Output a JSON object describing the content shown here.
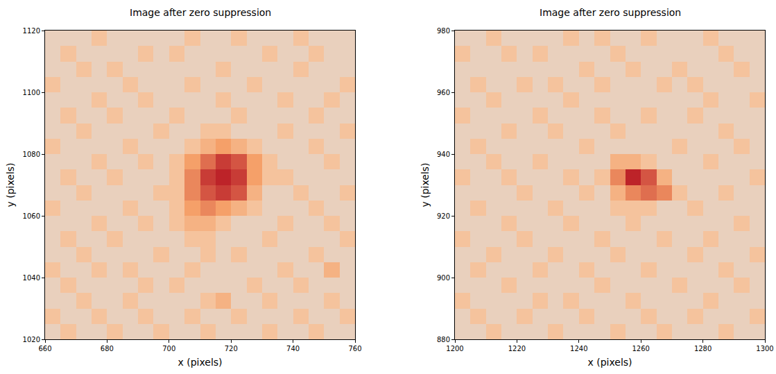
{
  "chart_data": [
    {
      "type": "heatmap",
      "title": "Image after zero suppression",
      "x_label": "x (pixels)",
      "y_label": "y (pixels)",
      "xlim": [
        660,
        760
      ],
      "ylim": [
        1020,
        1120
      ],
      "xticks": [
        660,
        680,
        700,
        720,
        740,
        760
      ],
      "yticks": [
        1020,
        1040,
        1060,
        1080,
        1100,
        1120
      ],
      "grid": false,
      "color": "Plasma",
      "zlim": [
        0,
        10
      ],
      "x": [
        662.5,
        667.5,
        672.5,
        677.5,
        682.5,
        687.5,
        692.5,
        697.5,
        702.5,
        707.5,
        712.5,
        717.5,
        722.5,
        727.5,
        732.5,
        737.5,
        742.5,
        747.5,
        752.5,
        757.5
      ],
      "y": [
        1022.5,
        1027.5,
        1032.5,
        1037.5,
        1042.5,
        1047.5,
        1052.5,
        1057.5,
        1062.5,
        1067.5,
        1072.5,
        1077.5,
        1082.5,
        1087.5,
        1092.5,
        1097.5,
        1102.5,
        1107.5,
        1112.5,
        1117.5
      ],
      "z": [
        [
          1,
          2,
          1,
          1,
          2,
          1,
          1,
          2,
          1,
          1,
          2,
          1,
          1,
          1,
          2,
          1,
          1,
          2,
          1,
          1
        ],
        [
          2,
          1,
          1,
          2,
          1,
          1,
          2,
          1,
          1,
          2,
          1,
          1,
          2,
          1,
          1,
          1,
          2,
          1,
          1,
          2
        ],
        [
          1,
          1,
          2,
          1,
          1,
          2,
          1,
          1,
          1,
          1,
          2,
          3,
          1,
          1,
          2,
          1,
          1,
          1,
          2,
          1
        ],
        [
          1,
          2,
          1,
          1,
          1,
          1,
          2,
          1,
          2,
          1,
          1,
          1,
          1,
          2,
          1,
          1,
          2,
          1,
          1,
          1
        ],
        [
          2,
          1,
          1,
          2,
          1,
          2,
          1,
          1,
          1,
          2,
          1,
          1,
          1,
          1,
          1,
          2,
          1,
          1,
          3,
          1
        ],
        [
          1,
          1,
          2,
          1,
          1,
          1,
          1,
          2,
          1,
          1,
          2,
          1,
          2,
          1,
          1,
          1,
          1,
          2,
          1,
          1
        ],
        [
          1,
          2,
          1,
          1,
          2,
          1,
          1,
          1,
          1,
          2,
          2,
          1,
          1,
          1,
          2,
          1,
          1,
          1,
          1,
          2
        ],
        [
          1,
          1,
          1,
          2,
          1,
          1,
          2,
          1,
          2,
          3,
          3,
          2,
          1,
          1,
          1,
          2,
          1,
          1,
          2,
          1
        ],
        [
          2,
          1,
          1,
          1,
          1,
          2,
          1,
          1,
          2,
          4,
          5,
          4,
          3,
          2,
          1,
          1,
          1,
          2,
          1,
          1
        ],
        [
          1,
          1,
          2,
          1,
          1,
          1,
          1,
          2,
          2,
          5,
          7,
          8,
          7,
          3,
          1,
          1,
          2,
          1,
          1,
          2
        ],
        [
          1,
          2,
          1,
          1,
          2,
          1,
          1,
          1,
          2,
          5,
          8,
          9,
          8,
          4,
          2,
          2,
          1,
          1,
          1,
          1
        ],
        [
          1,
          1,
          1,
          2,
          1,
          1,
          2,
          1,
          2,
          4,
          6,
          8,
          7,
          4,
          2,
          1,
          1,
          1,
          2,
          1
        ],
        [
          2,
          1,
          1,
          1,
          1,
          2,
          1,
          1,
          1,
          2,
          3,
          4,
          3,
          2,
          1,
          1,
          1,
          2,
          1,
          1
        ],
        [
          1,
          1,
          2,
          1,
          1,
          1,
          1,
          2,
          1,
          1,
          2,
          2,
          1,
          1,
          1,
          2,
          1,
          1,
          1,
          2
        ],
        [
          1,
          2,
          1,
          1,
          2,
          1,
          1,
          1,
          2,
          1,
          1,
          1,
          2,
          1,
          1,
          1,
          1,
          2,
          1,
          1
        ],
        [
          1,
          1,
          1,
          2,
          1,
          1,
          2,
          1,
          1,
          1,
          1,
          2,
          1,
          1,
          1,
          2,
          1,
          1,
          2,
          1
        ],
        [
          2,
          1,
          1,
          1,
          1,
          2,
          1,
          1,
          1,
          2,
          1,
          1,
          1,
          2,
          1,
          1,
          1,
          1,
          1,
          2
        ],
        [
          1,
          1,
          2,
          1,
          2,
          1,
          1,
          1,
          1,
          1,
          1,
          2,
          1,
          1,
          1,
          1,
          2,
          1,
          1,
          1
        ],
        [
          1,
          2,
          1,
          1,
          1,
          1,
          2,
          1,
          2,
          1,
          1,
          1,
          1,
          1,
          2,
          1,
          1,
          2,
          1,
          1
        ],
        [
          1,
          1,
          1,
          2,
          1,
          1,
          1,
          1,
          1,
          2,
          1,
          1,
          2,
          1,
          1,
          1,
          2,
          1,
          1,
          1
        ]
      ]
    },
    {
      "type": "heatmap",
      "title": "Image after zero suppression",
      "x_label": "x (pixels)",
      "y_label": "y (pixels)",
      "xlim": [
        1200,
        1300
      ],
      "ylim": [
        880,
        980
      ],
      "xticks": [
        1200,
        1220,
        1240,
        1260,
        1280,
        1300
      ],
      "yticks": [
        880,
        900,
        920,
        940,
        960,
        980
      ],
      "grid": false,
      "color": "Plasma",
      "zlim": [
        0,
        10
      ],
      "x": [
        1202.5,
        1207.5,
        1212.5,
        1217.5,
        1222.5,
        1227.5,
        1232.5,
        1237.5,
        1242.5,
        1247.5,
        1252.5,
        1257.5,
        1262.5,
        1267.5,
        1272.5,
        1277.5,
        1282.5,
        1287.5,
        1292.5,
        1297.5
      ],
      "y": [
        882.5,
        887.5,
        892.5,
        897.5,
        902.5,
        907.5,
        912.5,
        917.5,
        922.5,
        927.5,
        932.5,
        937.5,
        942.5,
        947.5,
        952.5,
        957.5,
        962.5,
        967.5,
        972.5,
        977.5
      ],
      "z": [
        [
          1,
          1,
          2,
          1,
          1,
          1,
          2,
          1,
          1,
          1,
          2,
          1,
          1,
          2,
          1,
          1,
          1,
          2,
          1,
          1
        ],
        [
          1,
          2,
          1,
          1,
          2,
          1,
          1,
          1,
          2,
          1,
          1,
          1,
          2,
          1,
          1,
          2,
          1,
          1,
          1,
          2
        ],
        [
          2,
          1,
          1,
          1,
          1,
          2,
          1,
          2,
          1,
          1,
          1,
          2,
          1,
          1,
          1,
          1,
          2,
          1,
          1,
          1
        ],
        [
          1,
          1,
          1,
          2,
          1,
          1,
          1,
          1,
          1,
          2,
          1,
          1,
          1,
          1,
          2,
          1,
          1,
          1,
          2,
          1
        ],
        [
          1,
          2,
          1,
          1,
          1,
          2,
          1,
          1,
          2,
          1,
          1,
          1,
          2,
          1,
          1,
          1,
          1,
          2,
          1,
          1
        ],
        [
          1,
          1,
          2,
          1,
          1,
          1,
          2,
          1,
          1,
          1,
          2,
          1,
          1,
          1,
          1,
          2,
          1,
          1,
          1,
          2
        ],
        [
          2,
          1,
          1,
          1,
          2,
          1,
          1,
          1,
          1,
          2,
          1,
          1,
          1,
          2,
          1,
          1,
          2,
          1,
          1,
          1
        ],
        [
          1,
          1,
          1,
          2,
          1,
          1,
          1,
          2,
          1,
          1,
          1,
          2,
          1,
          1,
          1,
          1,
          1,
          1,
          2,
          1
        ],
        [
          1,
          2,
          1,
          1,
          1,
          1,
          2,
          1,
          1,
          1,
          2,
          2,
          2,
          1,
          1,
          2,
          1,
          1,
          1,
          1
        ],
        [
          1,
          1,
          1,
          1,
          2,
          1,
          1,
          1,
          2,
          1,
          3,
          5,
          6,
          5,
          2,
          1,
          1,
          2,
          1,
          1
        ],
        [
          2,
          1,
          1,
          2,
          1,
          1,
          1,
          2,
          1,
          2,
          5,
          9,
          7,
          3,
          1,
          1,
          1,
          1,
          1,
          2
        ],
        [
          1,
          1,
          2,
          1,
          1,
          2,
          1,
          1,
          1,
          1,
          3,
          3,
          2,
          1,
          1,
          1,
          2,
          1,
          1,
          1
        ],
        [
          1,
          2,
          1,
          1,
          1,
          1,
          1,
          1,
          2,
          1,
          1,
          1,
          1,
          1,
          2,
          1,
          1,
          1,
          2,
          1
        ],
        [
          1,
          1,
          1,
          2,
          1,
          1,
          2,
          1,
          1,
          1,
          2,
          1,
          1,
          1,
          1,
          1,
          1,
          2,
          1,
          1
        ],
        [
          2,
          1,
          1,
          1,
          1,
          2,
          1,
          1,
          1,
          2,
          1,
          1,
          2,
          1,
          1,
          2,
          1,
          1,
          1,
          1
        ],
        [
          1,
          1,
          2,
          1,
          1,
          1,
          1,
          2,
          1,
          1,
          1,
          1,
          1,
          1,
          1,
          1,
          2,
          1,
          1,
          2
        ],
        [
          1,
          2,
          1,
          1,
          2,
          1,
          2,
          1,
          1,
          2,
          1,
          1,
          1,
          2,
          1,
          2,
          1,
          1,
          1,
          1
        ],
        [
          1,
          1,
          1,
          1,
          1,
          1,
          1,
          1,
          2,
          1,
          1,
          2,
          1,
          1,
          2,
          1,
          1,
          1,
          2,
          1
        ],
        [
          2,
          1,
          1,
          2,
          1,
          2,
          1,
          1,
          1,
          1,
          2,
          1,
          1,
          1,
          1,
          1,
          1,
          2,
          1,
          1
        ],
        [
          1,
          1,
          2,
          1,
          1,
          1,
          1,
          2,
          1,
          2,
          1,
          1,
          2,
          1,
          1,
          1,
          2,
          1,
          1,
          1
        ]
      ]
    }
  ]
}
